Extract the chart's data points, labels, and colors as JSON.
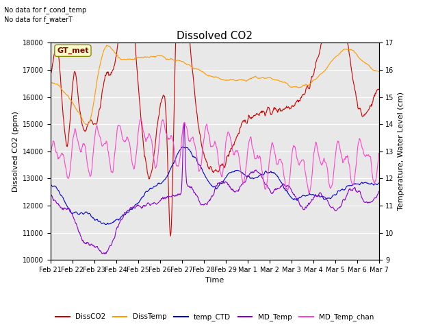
{
  "title": "Dissolved CO2",
  "xlabel": "Time",
  "ylabel_left": "Dissolved CO2 (ppm)",
  "ylabel_right": "Temperature, Water Level (cm)",
  "ylim_left": [
    10000,
    18000
  ],
  "ylim_right": [
    9.0,
    17.0
  ],
  "xtick_labels": [
    "Feb 21",
    "Feb 22",
    "Feb 23",
    "Feb 24",
    "Feb 25",
    "Feb 26",
    "Feb 27",
    "Feb 28",
    "Feb 29",
    "Mar 1",
    "Mar 2",
    "Mar 3",
    "Mar 4",
    "Mar 5",
    "Mar 6",
    "Mar 7"
  ],
  "annotation1": "No data for f_cond_temp",
  "annotation2": "No data for f_waterT",
  "gt_label": "GT_met",
  "colors": {
    "DissCO2": "#cc0000",
    "DissTemp": "#ff9900",
    "temp_CTD": "#0000cc",
    "MD_Temp": "#8800cc",
    "MD_Temp_chan": "#ff44cc"
  },
  "bg_color": "#e8e8e8",
  "title_fontsize": 11,
  "axis_fontsize": 8,
  "tick_fontsize": 7,
  "legend_fontsize": 7.5
}
